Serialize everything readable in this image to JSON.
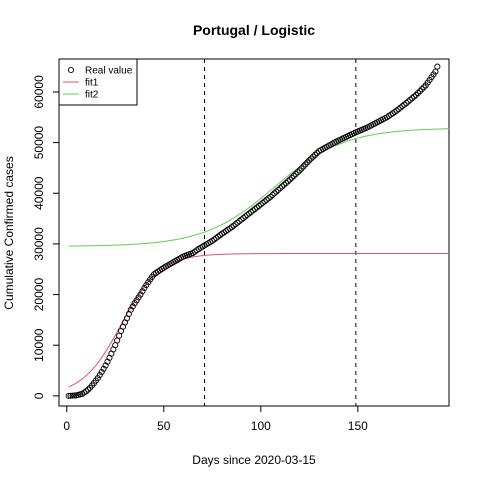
{
  "chart_data": {
    "type": "scatter",
    "title": "Portugal / Logistic",
    "xlabel": "Days since 2020-03-15",
    "ylabel": "Cumulative Confirmed cases",
    "xlim": [
      -4,
      197
    ],
    "ylim": [
      -2000,
      66500
    ],
    "x_ticks": [
      0,
      50,
      100,
      150
    ],
    "y_ticks": [
      0,
      10000,
      20000,
      30000,
      40000,
      50000,
      60000
    ],
    "vlines": [
      71,
      149
    ],
    "legend": {
      "position": "top-left",
      "entries": [
        {
          "label": "Real value",
          "kind": "point",
          "color": "#000000"
        },
        {
          "label": "fit1",
          "kind": "line",
          "color": "#DF536B"
        },
        {
          "label": "fit2",
          "kind": "line",
          "color": "#61D04F"
        }
      ]
    },
    "series": [
      {
        "name": "Real value",
        "kind": "points",
        "color": "#000000",
        "x_start": 1,
        "x_end": 191,
        "keypoints": [
          [
            1,
            0
          ],
          [
            5,
            100
          ],
          [
            8,
            400
          ],
          [
            10,
            900
          ],
          [
            12,
            1600
          ],
          [
            14,
            2500
          ],
          [
            16,
            3500
          ],
          [
            18,
            4700
          ],
          [
            20,
            6000
          ],
          [
            22,
            7500
          ],
          [
            25,
            10000
          ],
          [
            28,
            12800
          ],
          [
            30,
            14500
          ],
          [
            33,
            17000
          ],
          [
            35,
            18300
          ],
          [
            38,
            20000
          ],
          [
            40,
            21300
          ],
          [
            43,
            23000
          ],
          [
            45,
            24000
          ],
          [
            48,
            24800
          ],
          [
            50,
            25300
          ],
          [
            55,
            26400
          ],
          [
            60,
            27500
          ],
          [
            65,
            28200
          ],
          [
            68,
            29000
          ],
          [
            71,
            29700
          ],
          [
            75,
            30600
          ],
          [
            80,
            32000
          ],
          [
            85,
            33300
          ],
          [
            90,
            34800
          ],
          [
            95,
            36300
          ],
          [
            100,
            37800
          ],
          [
            105,
            39300
          ],
          [
            110,
            41000
          ],
          [
            115,
            42700
          ],
          [
            120,
            44500
          ],
          [
            125,
            46500
          ],
          [
            130,
            48300
          ],
          [
            135,
            49400
          ],
          [
            140,
            50400
          ],
          [
            145,
            51300
          ],
          [
            150,
            52200
          ],
          [
            155,
            53000
          ],
          [
            160,
            54000
          ],
          [
            165,
            55000
          ],
          [
            170,
            56300
          ],
          [
            175,
            57800
          ],
          [
            180,
            59400
          ],
          [
            185,
            61300
          ],
          [
            190,
            64000
          ],
          [
            191,
            65000
          ]
        ]
      },
      {
        "name": "fit1",
        "kind": "logistic",
        "color": "#DF536B",
        "asymptote": 28100,
        "rate": 0.1,
        "midpoint": 28,
        "x_start": 1,
        "x_end": 197
      },
      {
        "name": "fit2",
        "kind": "logistic",
        "color": "#61D04F",
        "base": 29500,
        "asymptote": 23400,
        "rate": 0.055,
        "midpoint": 107,
        "x_start": 1,
        "x_end": 197
      }
    ]
  }
}
